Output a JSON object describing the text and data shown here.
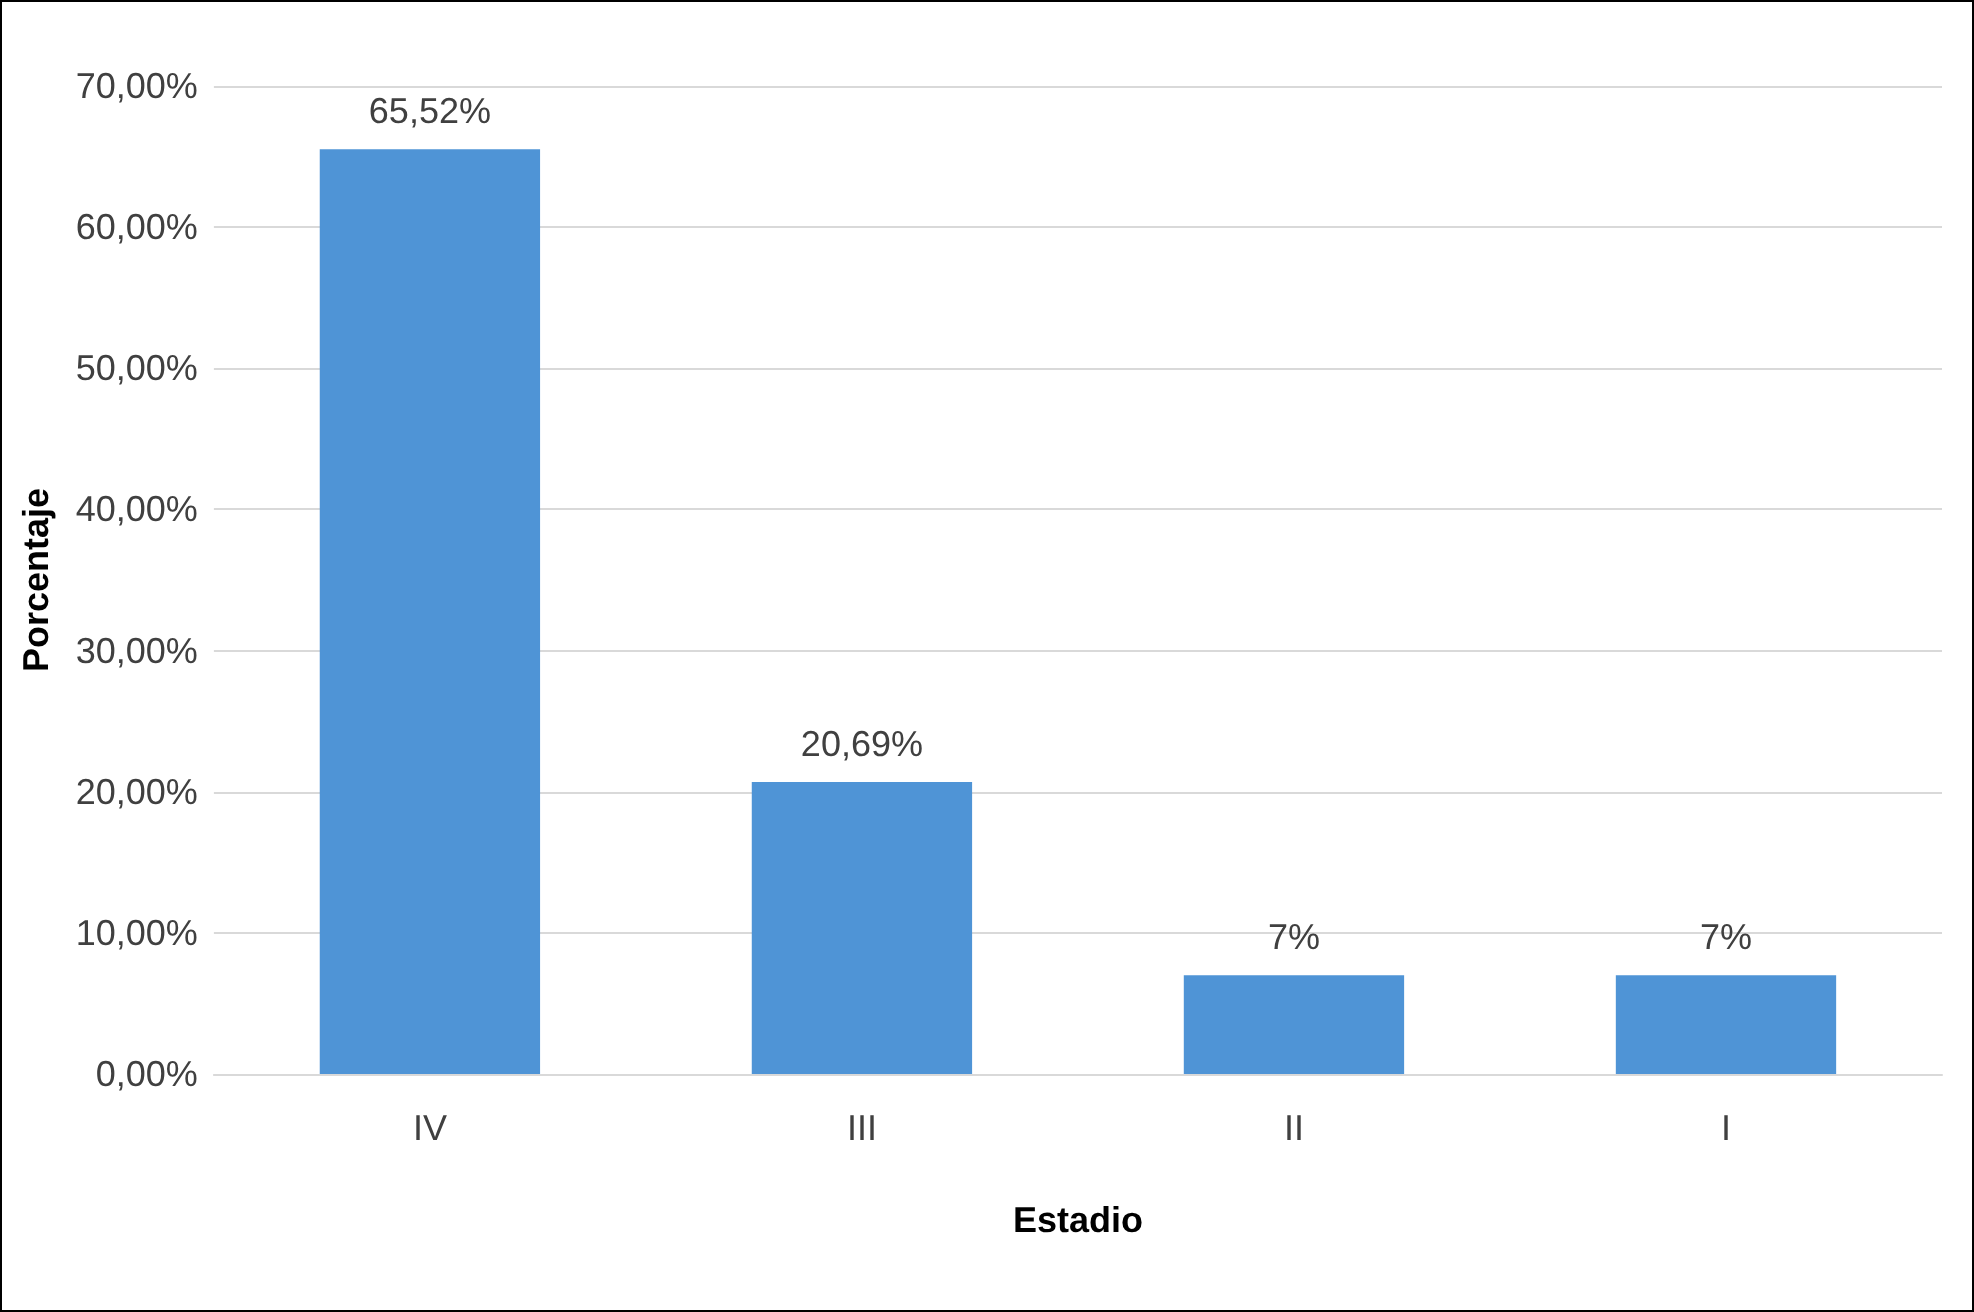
{
  "chart_data": {
    "type": "bar",
    "xlabel": "Estadio",
    "ylabel": "Porcentaje",
    "categories": [
      "IV",
      "III",
      "II",
      "I"
    ],
    "values": [
      65.52,
      20.69,
      7,
      7
    ],
    "value_labels": [
      "65,52%",
      "20,69%",
      "7%",
      "7%"
    ],
    "color": "#4f94d6",
    "ylim": [
      0,
      70
    ],
    "yticks": [
      {
        "value": 0,
        "label": "0,00%"
      },
      {
        "value": 10,
        "label": "10,00%"
      },
      {
        "value": 20,
        "label": "20,00%"
      },
      {
        "value": 30,
        "label": "30,00%"
      },
      {
        "value": 40,
        "label": "40,00%"
      },
      {
        "value": 50,
        "label": "50,00%"
      },
      {
        "value": 60,
        "label": "60,00%"
      },
      {
        "value": 70,
        "label": "70,00%"
      }
    ],
    "grid": "y"
  }
}
